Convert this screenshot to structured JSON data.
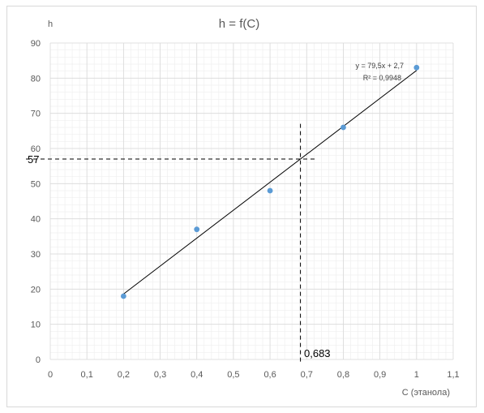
{
  "chart_data": {
    "type": "scatter",
    "title": "h = f(C)",
    "xlabel": "C (этанола)",
    "ylabel": "h",
    "xlim": [
      0,
      1.1
    ],
    "ylim": [
      0,
      90
    ],
    "x_ticks": [
      "0",
      "0,1",
      "0,2",
      "0,3",
      "0,4",
      "0,5",
      "0,6",
      "0,7",
      "0,8",
      "0,9",
      "1",
      "1,1"
    ],
    "y_ticks": [
      "0",
      "10",
      "20",
      "30",
      "40",
      "50",
      "60",
      "70",
      "80",
      "90"
    ],
    "grid": true,
    "minor_grid": true,
    "points": [
      {
        "x": 0.2,
        "y": 18
      },
      {
        "x": 0.4,
        "y": 37
      },
      {
        "x": 0.6,
        "y": 48
      },
      {
        "x": 0.8,
        "y": 66
      },
      {
        "x": 1.0,
        "y": 83
      }
    ],
    "point_color": "#5b9bd5",
    "trendline": {
      "slope": 79.5,
      "intercept": 2.7,
      "x_range": [
        0.2,
        1.0
      ],
      "equation_text": "y = 79,5x + 2,7",
      "r2_text": "R² = 0,9948",
      "color": "#000000"
    },
    "annotations": {
      "x_value": 0.683,
      "y_value": 57,
      "x_label": "0,683",
      "y_label": "57"
    }
  }
}
